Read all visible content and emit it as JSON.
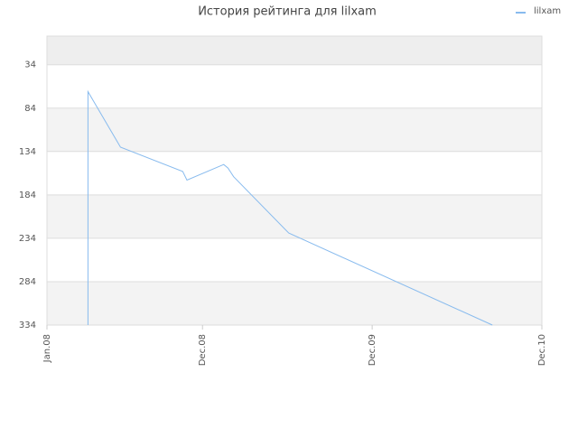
{
  "chart_data": {
    "type": "line",
    "title": "История рейтинга для lilxam",
    "y_inverted": true,
    "x": [
      2.9,
      2.9,
      5.2,
      9.6,
      9.9,
      12.5,
      12.8,
      13.2,
      17.1,
      31.5
    ],
    "xlim": [
      0,
      35
    ],
    "xticks": [
      {
        "value": 0,
        "label": "Jan.08"
      },
      {
        "value": 11,
        "label": "Dec.08"
      },
      {
        "value": 23,
        "label": "Dec.09"
      },
      {
        "value": 35,
        "label": "Dec.10"
      }
    ],
    "ylim": [
      1,
      334
    ],
    "yticks": [
      34,
      84,
      134,
      184,
      234,
      284,
      334
    ],
    "series": [
      {
        "name": "lilxam",
        "color": "#88bbee",
        "values": [
          334,
          65,
          129,
          157,
          167,
          149,
          153,
          163,
          228,
          334
        ]
      }
    ],
    "grid": true
  }
}
